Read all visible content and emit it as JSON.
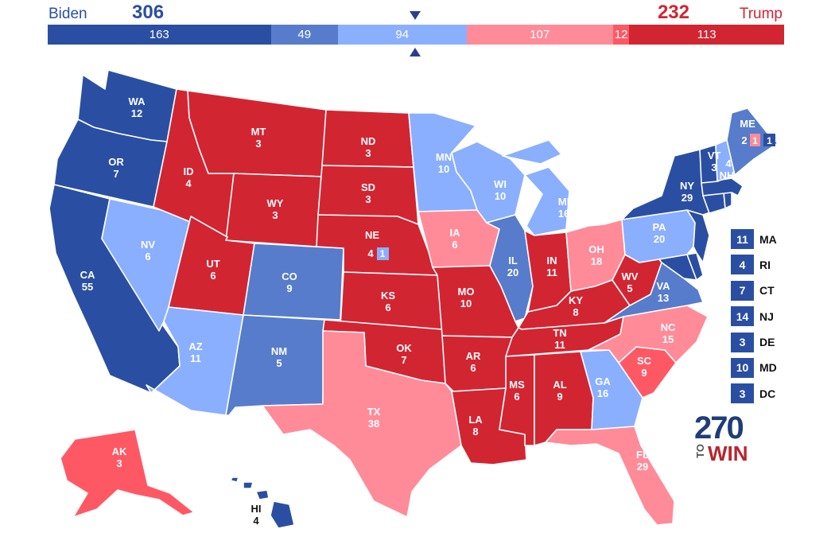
{
  "header": {
    "biden_name": "Biden",
    "biden_total": "306",
    "trump_name": "Trump",
    "trump_total": "232"
  },
  "bar": [
    {
      "value": 163,
      "label": "163",
      "color": "#2a4fa2"
    },
    {
      "value": 49,
      "label": "49",
      "color": "#577ccb"
    },
    {
      "value": 94,
      "label": "94",
      "color": "#8aafff"
    },
    {
      "value": 107,
      "label": "107",
      "color": "#ff8b98"
    },
    {
      "value": 12,
      "label": "12",
      "color": "#ff5865"
    },
    {
      "value": 113,
      "label": "113",
      "color": "#d22532"
    }
  ],
  "colors": {
    "safe_d": "#2a4fa2",
    "likely_d": "#577ccb",
    "lean_d": "#8aafff",
    "lean_r": "#ff8b98",
    "likely_r": "#ff5865",
    "safe_r": "#d22532",
    "marker": "#2b3f8f"
  },
  "states": {
    "WA": {
      "abbr": "WA",
      "ev": "12",
      "rating": "safe_d"
    },
    "OR": {
      "abbr": "OR",
      "ev": "7",
      "rating": "safe_d"
    },
    "CA": {
      "abbr": "CA",
      "ev": "55",
      "rating": "safe_d"
    },
    "NV": {
      "abbr": "NV",
      "ev": "6",
      "rating": "lean_d"
    },
    "ID": {
      "abbr": "ID",
      "ev": "4",
      "rating": "safe_r"
    },
    "MT": {
      "abbr": "MT",
      "ev": "3",
      "rating": "safe_r"
    },
    "WY": {
      "abbr": "WY",
      "ev": "3",
      "rating": "safe_r"
    },
    "UT": {
      "abbr": "UT",
      "ev": "6",
      "rating": "safe_r"
    },
    "AZ": {
      "abbr": "AZ",
      "ev": "11",
      "rating": "lean_d"
    },
    "CO": {
      "abbr": "CO",
      "ev": "9",
      "rating": "likely_d"
    },
    "NM": {
      "abbr": "NM",
      "ev": "5",
      "rating": "likely_d"
    },
    "ND": {
      "abbr": "ND",
      "ev": "3",
      "rating": "safe_r"
    },
    "SD": {
      "abbr": "SD",
      "ev": "3",
      "rating": "safe_r"
    },
    "NE": {
      "abbr": "NE",
      "ev": "4",
      "rating": "safe_r",
      "cd2": "1"
    },
    "KS": {
      "abbr": "KS",
      "ev": "6",
      "rating": "safe_r"
    },
    "OK": {
      "abbr": "OK",
      "ev": "7",
      "rating": "safe_r"
    },
    "TX": {
      "abbr": "TX",
      "ev": "38",
      "rating": "lean_r"
    },
    "MN": {
      "abbr": "MN",
      "ev": "10",
      "rating": "lean_d"
    },
    "IA": {
      "abbr": "IA",
      "ev": "6",
      "rating": "lean_r"
    },
    "MO": {
      "abbr": "MO",
      "ev": "10",
      "rating": "safe_r"
    },
    "AR": {
      "abbr": "AR",
      "ev": "6",
      "rating": "safe_r"
    },
    "LA": {
      "abbr": "LA",
      "ev": "8",
      "rating": "safe_r"
    },
    "WI": {
      "abbr": "WI",
      "ev": "10",
      "rating": "lean_d"
    },
    "IL": {
      "abbr": "IL",
      "ev": "20",
      "rating": "likely_d"
    },
    "MI": {
      "abbr": "MI",
      "ev": "16",
      "rating": "lean_d"
    },
    "IN": {
      "abbr": "IN",
      "ev": "11",
      "rating": "safe_r"
    },
    "OH": {
      "abbr": "OH",
      "ev": "18",
      "rating": "lean_r"
    },
    "KY": {
      "abbr": "KY",
      "ev": "8",
      "rating": "safe_r"
    },
    "TN": {
      "abbr": "TN",
      "ev": "11",
      "rating": "safe_r"
    },
    "MS": {
      "abbr": "MS",
      "ev": "6",
      "rating": "safe_r"
    },
    "AL": {
      "abbr": "AL",
      "ev": "9",
      "rating": "safe_r"
    },
    "GA": {
      "abbr": "GA",
      "ev": "16",
      "rating": "lean_d"
    },
    "FL": {
      "abbr": "FL",
      "ev": "29",
      "rating": "lean_r"
    },
    "SC": {
      "abbr": "SC",
      "ev": "9",
      "rating": "likely_r"
    },
    "NC": {
      "abbr": "NC",
      "ev": "15",
      "rating": "lean_r"
    },
    "VA": {
      "abbr": "VA",
      "ev": "13",
      "rating": "likely_d"
    },
    "WV": {
      "abbr": "WV",
      "ev": "5",
      "rating": "safe_r"
    },
    "PA": {
      "abbr": "PA",
      "ev": "20",
      "rating": "lean_d"
    },
    "NY": {
      "abbr": "NY",
      "ev": "29",
      "rating": "safe_d"
    },
    "VT": {
      "abbr": "VT",
      "ev": "3",
      "rating": "safe_d"
    },
    "NH": {
      "abbr": "NH",
      "ev": "4",
      "rating": "lean_d"
    },
    "ME": {
      "abbr": "ME",
      "ev_split": [
        "2",
        "1",
        "1"
      ],
      "rating": "likely_d"
    },
    "AK": {
      "abbr": "AK",
      "ev": "3",
      "rating": "likely_r"
    },
    "HI": {
      "abbr": "HI",
      "ev": "4",
      "rating": "safe_d"
    },
    "MA": {
      "rating": "safe_d"
    },
    "RI": {
      "rating": "safe_d"
    },
    "CT": {
      "rating": "safe_d"
    },
    "NJ": {
      "rating": "safe_d"
    },
    "DE": {
      "rating": "safe_d"
    },
    "MD": {
      "rating": "safe_d"
    }
  },
  "small_states": [
    {
      "abbr": "MA",
      "ev": "11"
    },
    {
      "abbr": "RI",
      "ev": "4"
    },
    {
      "abbr": "CT",
      "ev": "7"
    },
    {
      "abbr": "NJ",
      "ev": "14"
    },
    {
      "abbr": "DE",
      "ev": "3"
    },
    {
      "abbr": "MD",
      "ev": "10"
    },
    {
      "abbr": "DC",
      "ev": "3"
    }
  ],
  "logo": {
    "number": "270",
    "to": "TO",
    "win": "WIN"
  }
}
